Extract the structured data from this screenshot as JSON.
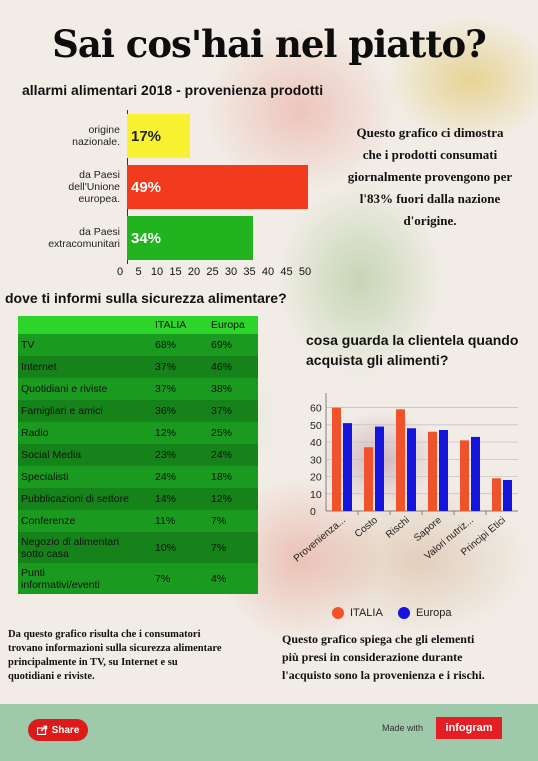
{
  "title": "Sai cos'hai nel piatto?",
  "chart1": {
    "title": "allarmi alimentari 2018 - provenienza prodotti",
    "bars": [
      {
        "label_lines": [
          "origine",
          "nazionale."
        ],
        "value": 17,
        "value_label": "17%",
        "color": "#f7f132",
        "text_color": "#222222"
      },
      {
        "label_lines": [
          "da Paesi",
          "dell'Unione",
          "europea."
        ],
        "value": 49,
        "value_label": "49%",
        "color": "#f23b1c",
        "text_color": "#ffffff"
      },
      {
        "label_lines": [
          "da Paesi",
          "extracomunitari"
        ],
        "value": 34,
        "value_label": "34%",
        "color": "#22b41f",
        "text_color": "#ffffff"
      }
    ],
    "x_ticks": [
      "0",
      "5",
      "10",
      "15",
      "20",
      "25",
      "30",
      "35",
      "40",
      "45",
      "50"
    ]
  },
  "note1": [
    "Questo grafico ci dimostra",
    "che i prodotti consumati",
    "giornalmente provengono per",
    "l'83% fuori dalla nazione",
    "d'origine."
  ],
  "table": {
    "title": "dove ti informi sulla sicurezza alimentare?",
    "headers": [
      "",
      "ITALIA",
      "Europa"
    ],
    "rows": [
      {
        "label_lines": [
          "TV"
        ],
        "italia": "68%",
        "europa": "69%"
      },
      {
        "label_lines": [
          "Internet"
        ],
        "italia": "37%",
        "europa": "46%"
      },
      {
        "label_lines": [
          "Quotidiani e riviste"
        ],
        "italia": "37%",
        "europa": "38%"
      },
      {
        "label_lines": [
          "Famigliari e amici"
        ],
        "italia": "36%",
        "europa": "37%"
      },
      {
        "label_lines": [
          "Radio"
        ],
        "italia": "12%",
        "europa": "25%"
      },
      {
        "label_lines": [
          "Social Media"
        ],
        "italia": "23%",
        "europa": "24%"
      },
      {
        "label_lines": [
          "Specialisti"
        ],
        "italia": "24%",
        "europa": "18%"
      },
      {
        "label_lines": [
          "Pubblicazioni di settore"
        ],
        "italia": "14%",
        "europa": "12%"
      },
      {
        "label_lines": [
          "Conferenze"
        ],
        "italia": "11%",
        "europa": "7%"
      },
      {
        "label_lines": [
          "Negozio di alimentari",
          "sotto casa"
        ],
        "italia": "10%",
        "europa": "7%"
      },
      {
        "label_lines": [
          "Punti",
          "informativi/eventi"
        ],
        "italia": "7%",
        "europa": "4%"
      }
    ]
  },
  "note2": [
    "Da questo grafico risulta che i consumatori",
    "trovano informazioni sulla sicurezza alimentare",
    "principalmente in TV, su Internet e su",
    "quotidiani e riviste."
  ],
  "chart2": {
    "title_lines": [
      "cosa guarda la clientela quando",
      "acquista gli alimenti?"
    ],
    "categories": [
      "Provenienza...",
      "Costo",
      "Rischi",
      "Sapore",
      "Valori nutriz...",
      "Principi Etici"
    ],
    "yticks": [
      "0",
      "10",
      "20",
      "30",
      "40",
      "50",
      "60"
    ],
    "ylim": [
      0,
      65
    ],
    "series": [
      {
        "name": "ITALIA",
        "color": "#f0522b",
        "values": [
          60,
          37,
          59,
          46,
          41,
          19
        ]
      },
      {
        "name": "Europa",
        "color": "#1414dc",
        "values": [
          51,
          49,
          48,
          47,
          43,
          18
        ]
      }
    ]
  },
  "chart_data": [
    {
      "type": "bar",
      "orientation": "horizontal",
      "title": "allarmi alimentari 2018 - provenienza prodotti",
      "categories": [
        "origine nazionale.",
        "da Paesi dell'Unione europea.",
        "da Paesi extracomunitari"
      ],
      "values": [
        17,
        49,
        34
      ],
      "xlim": [
        0,
        50
      ]
    },
    {
      "type": "table",
      "title": "dove ti informi sulla sicurezza alimentare?",
      "columns": [
        "ITALIA",
        "Europa"
      ],
      "rows": [
        "TV",
        "Internet",
        "Quotidiani e riviste",
        "Famigliari e amici",
        "Radio",
        "Social Media",
        "Specialisti",
        "Pubblicazioni di settore",
        "Conferenze",
        "Negozio di alimentari sotto casa",
        "Punti informativi/eventi"
      ],
      "ITALIA": [
        68,
        37,
        37,
        36,
        12,
        23,
        24,
        14,
        11,
        10,
        7
      ],
      "Europa": [
        69,
        46,
        38,
        37,
        25,
        24,
        18,
        12,
        7,
        7,
        4
      ]
    },
    {
      "type": "bar",
      "title": "cosa guarda la clientela quando acquista gli alimenti?",
      "categories": [
        "Provenienza...",
        "Costo",
        "Rischi",
        "Sapore",
        "Valori nutriz...",
        "Principi Etici"
      ],
      "series": [
        {
          "name": "ITALIA",
          "values": [
            60,
            37,
            59,
            46,
            41,
            19
          ]
        },
        {
          "name": "Europa",
          "values": [
            51,
            49,
            48,
            47,
            43,
            18
          ]
        }
      ],
      "ylim": [
        0,
        65
      ],
      "legend": "bottom"
    }
  ],
  "note3": [
    "Questo grafico spiega che gli elementi",
    "più presi in considerazione durante",
    "l'acquisto sono la provenienza e i rischi."
  ],
  "footer": {
    "share_label": "Share",
    "made_with": "Made with",
    "brand": "infogram"
  }
}
